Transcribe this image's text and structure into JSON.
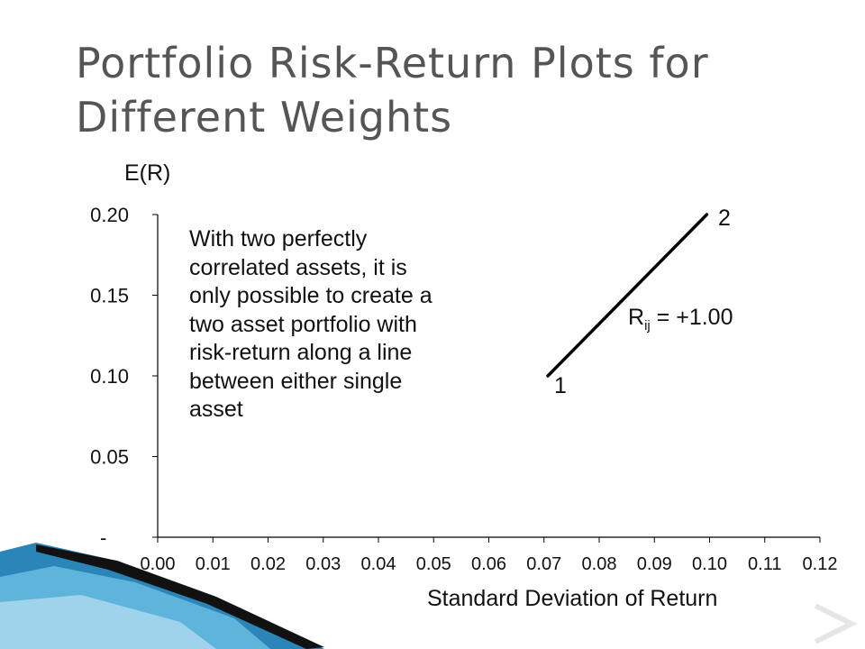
{
  "slide": {
    "title_line1": "Portfolio Risk-Return Plots for",
    "title_line2": "Different Weights",
    "annotation": "With two perfectly correlated assets, it is only possible to create a two asset portfolio with risk-return along a line between either single asset",
    "correlation": {
      "symbol": "R",
      "subscript": "ij",
      "value": " = +1.00"
    },
    "point_labels": {
      "start": "1",
      "end": "2"
    }
  },
  "colors": {
    "title": "#555555",
    "line": "#000000",
    "decoration_blue": "#2a86b8"
  },
  "chart_data": {
    "type": "line",
    "title": "",
    "xlabel": "Standard Deviation of Return",
    "ylabel": "E(R)",
    "xlim": [
      0,
      0.12
    ],
    "ylim": [
      0,
      0.2
    ],
    "x_ticks": [
      "0.00",
      "0.01",
      "0.02",
      "0.03",
      "0.04",
      "0.05",
      "0.06",
      "0.07",
      "0.08",
      "0.09",
      "0.10",
      "0.11",
      "0.12"
    ],
    "y_ticks": [
      "-",
      "0.05",
      "0.10",
      "0.15",
      "0.20"
    ],
    "grid": false,
    "series": [
      {
        "x": [
          0.0707,
          0.0995
        ],
        "y": [
          0.1,
          0.2
        ]
      }
    ]
  }
}
